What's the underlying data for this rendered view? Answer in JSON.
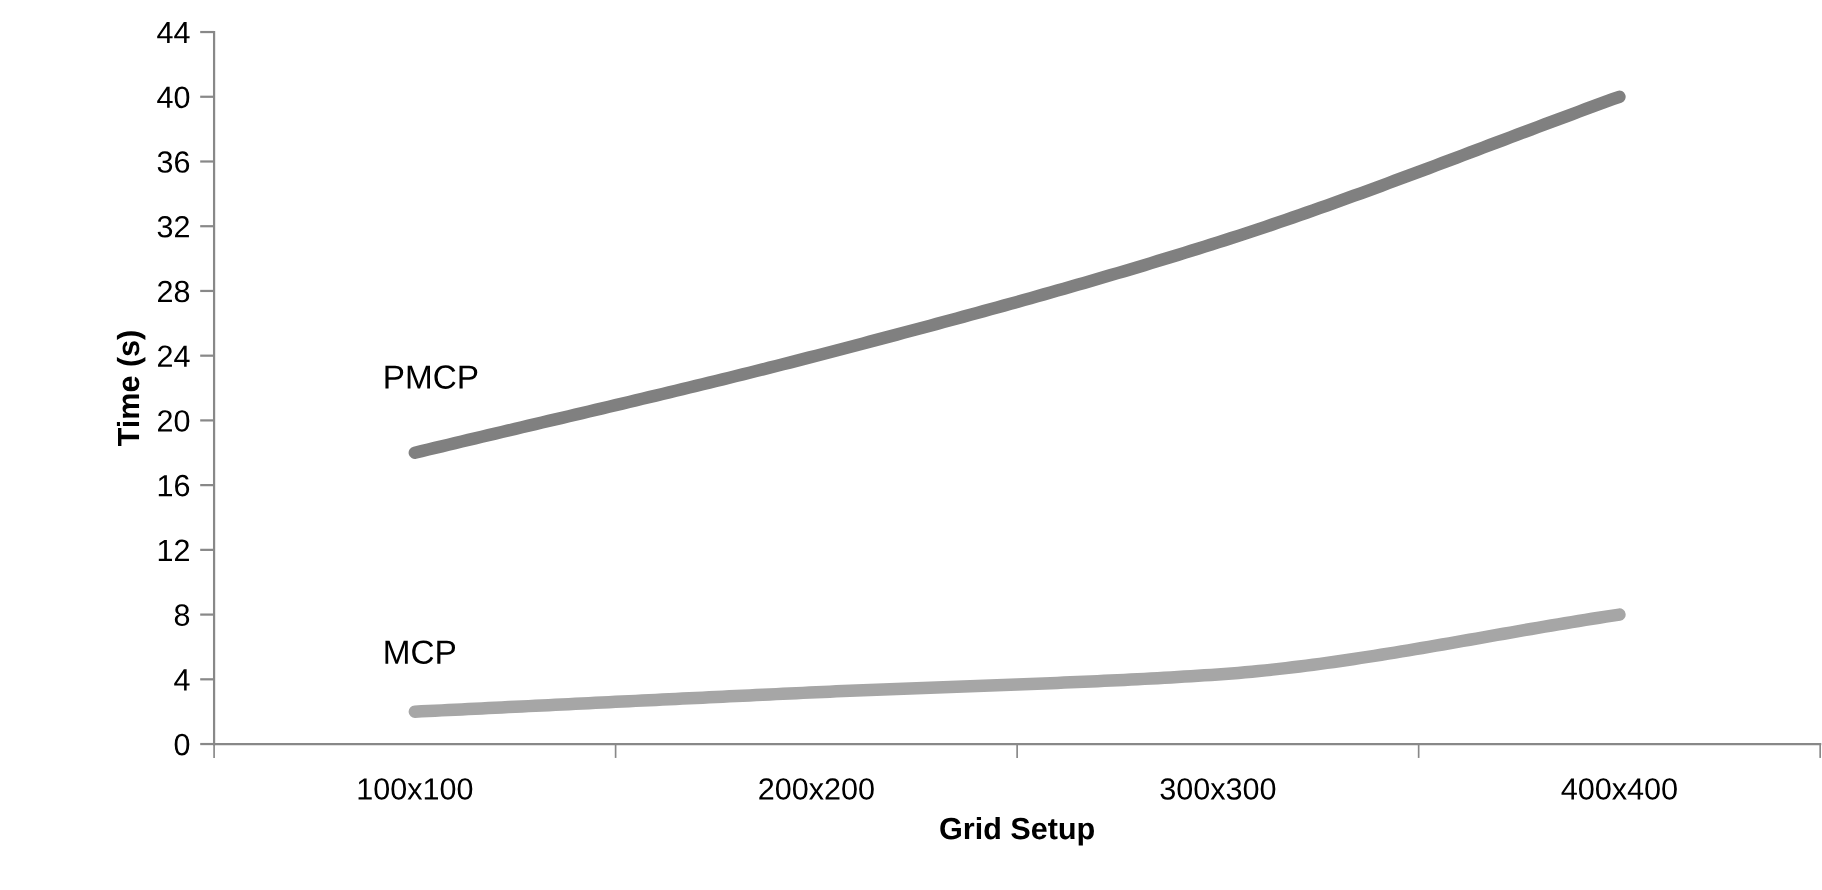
{
  "chart_data": {
    "type": "line",
    "xlabel": "Grid Setup",
    "ylabel": "Time (s)",
    "categories": [
      "100x100",
      "200x200",
      "300x300",
      "400x400"
    ],
    "series": [
      {
        "name": "PMCP",
        "color": "#808080",
        "values": [
          18,
          24,
          31,
          40
        ]
      },
      {
        "name": "MCP",
        "color": "#a6a6a6",
        "values": [
          2,
          3.2,
          4.3,
          8
        ]
      }
    ],
    "ylim": [
      0,
      44
    ],
    "yticks": [
      0,
      4,
      8,
      12,
      16,
      20,
      24,
      28,
      32,
      36,
      40,
      44
    ],
    "grid": false,
    "legend": false,
    "marker": "none",
    "line_style": "solid"
  }
}
